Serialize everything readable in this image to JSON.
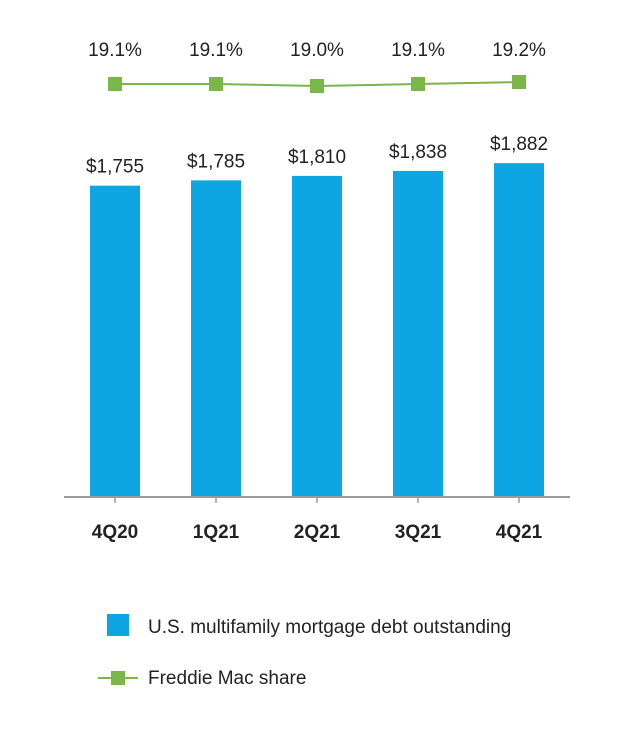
{
  "chart_data": {
    "type": "bar",
    "categories": [
      "4Q20",
      "1Q21",
      "2Q21",
      "3Q21",
      "4Q21"
    ],
    "series": [
      {
        "name": "U.S. multifamily mortgage debt outstanding",
        "type": "bar",
        "values": [
          1755,
          1785,
          1810,
          1838,
          1882
        ],
        "labels": [
          "$1,755",
          "$1,785",
          "$1,810",
          "$1,838",
          "$1,882"
        ],
        "color": "#0ea5e3"
      },
      {
        "name": "Freddie Mac share",
        "type": "line",
        "values": [
          19.1,
          19.1,
          19.0,
          19.1,
          19.2
        ],
        "labels": [
          "19.1%",
          "19.1%",
          "19.0%",
          "19.1%",
          "19.2%"
        ],
        "color": "#7ab648"
      }
    ],
    "legend": "bottom"
  }
}
